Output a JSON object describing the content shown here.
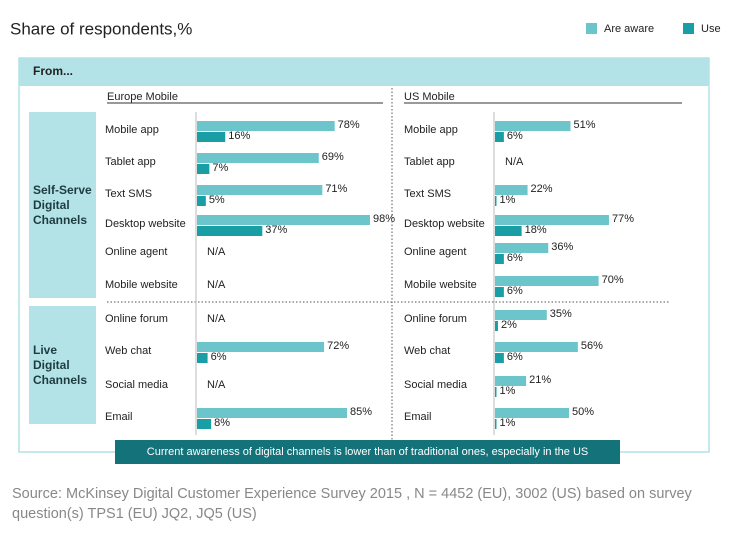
{
  "chart_data": {
    "type": "bar",
    "orientation": "horizontal",
    "title": "Share of respondents,%",
    "legend": [
      {
        "name": "Are aware",
        "color": "#6cc5cb"
      },
      {
        "name": "Use",
        "color": "#1a9ea6"
      }
    ],
    "header_label": "From...",
    "groups": [
      "Self-Serve Digital Channels",
      "Live Digital Channels"
    ],
    "categories": [
      "Mobile app",
      "Tablet app",
      "Text SMS",
      "Desktop website",
      "Online agent",
      "Mobile website",
      "Online forum",
      "Web chat",
      "Social media",
      "Email"
    ],
    "panels": [
      {
        "title": "Europe Mobile",
        "series": [
          {
            "values": [
              78,
              69,
              71,
              98,
              null,
              null,
              null,
              72,
              null,
              85
            ],
            "value_labels": [
              "78%",
              "69%",
              "71%",
              "98%",
              "N/A",
              "N/A",
              "N/A",
              "72%",
              "N/A",
              "85%"
            ]
          },
          {
            "values": [
              16,
              7,
              5,
              37,
              null,
              null,
              null,
              6,
              null,
              8
            ],
            "value_labels": [
              "16%",
              "7%",
              "5%",
              "37%",
              null,
              null,
              null,
              "6%",
              null,
              "8%"
            ]
          }
        ]
      },
      {
        "title": "US Mobile",
        "series": [
          {
            "values": [
              51,
              null,
              22,
              77,
              36,
              70,
              35,
              56,
              21,
              50
            ],
            "value_labels": [
              "51%",
              "N/A",
              "22%",
              "77%",
              "36%",
              "70%",
              "35%",
              "56%",
              "21%",
              "50%"
            ]
          },
          {
            "values": [
              6,
              null,
              1,
              18,
              6,
              6,
              2,
              6,
              1,
              1
            ],
            "value_labels": [
              "6%",
              null,
              "1%",
              "18%",
              "6%",
              "6%",
              "2%",
              "6%",
              "1%",
              "1%"
            ]
          }
        ]
      }
    ],
    "note": "Current awareness of digital channels is lower than of traditional ones, especially in the US",
    "source": "Source: McKinsey Digital Customer Experience Survey 2015 , N = 4452 (EU), 3002 (US) based on survey question(s) TPS1 (EU) JQ2, JQ5 (US)"
  }
}
